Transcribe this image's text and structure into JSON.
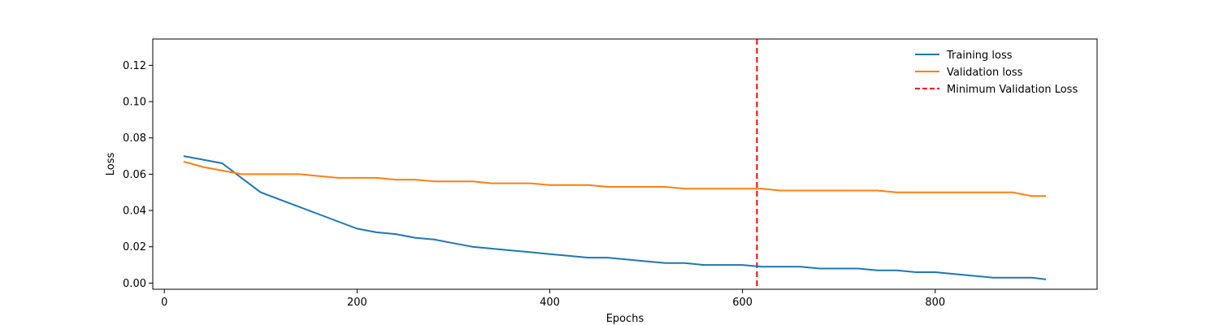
{
  "chart_data": {
    "type": "line",
    "title": "",
    "xlabel": "Epochs",
    "ylabel": "Loss",
    "xlim": [
      -12,
      968
    ],
    "ylim": [
      -0.0034,
      0.1345
    ],
    "x_ticks": [
      0,
      200,
      400,
      600,
      800
    ],
    "y_ticks": [
      0.0,
      0.02,
      0.04,
      0.06,
      0.08,
      0.1,
      0.12
    ],
    "x_tick_labels": [
      "0",
      "200",
      "400",
      "600",
      "800"
    ],
    "y_tick_labels": [
      "0.00",
      "0.02",
      "0.04",
      "0.06",
      "0.08",
      "0.10",
      "0.12"
    ],
    "grid": false,
    "legend_position": "top-right",
    "series": [
      {
        "name": "Training loss",
        "color": "#1f77b4",
        "style": "solid",
        "x": [
          20,
          40,
          60,
          80,
          100,
          120,
          140,
          160,
          180,
          200,
          220,
          240,
          260,
          280,
          300,
          320,
          340,
          360,
          380,
          400,
          420,
          440,
          460,
          480,
          500,
          520,
          540,
          560,
          580,
          600,
          620,
          640,
          660,
          680,
          700,
          720,
          740,
          760,
          780,
          800,
          820,
          840,
          860,
          880,
          900,
          915
        ],
        "y": [
          0.07,
          0.068,
          0.066,
          0.058,
          0.05,
          0.046,
          0.042,
          0.038,
          0.034,
          0.03,
          0.028,
          0.027,
          0.025,
          0.024,
          0.022,
          0.02,
          0.019,
          0.018,
          0.017,
          0.016,
          0.015,
          0.014,
          0.014,
          0.013,
          0.012,
          0.011,
          0.011,
          0.01,
          0.01,
          0.01,
          0.009,
          0.009,
          0.009,
          0.008,
          0.008,
          0.008,
          0.007,
          0.007,
          0.006,
          0.006,
          0.005,
          0.004,
          0.003,
          0.003,
          0.003,
          0.002
        ]
      },
      {
        "name": "Validation loss",
        "color": "#ff7f0e",
        "style": "solid",
        "x": [
          20,
          40,
          60,
          80,
          100,
          120,
          140,
          160,
          180,
          200,
          220,
          240,
          260,
          280,
          300,
          320,
          340,
          360,
          380,
          400,
          420,
          440,
          460,
          480,
          500,
          520,
          540,
          560,
          580,
          600,
          620,
          640,
          660,
          680,
          700,
          720,
          740,
          760,
          780,
          800,
          820,
          840,
          860,
          880,
          900,
          915
        ],
        "y": [
          0.067,
          0.064,
          0.062,
          0.06,
          0.06,
          0.06,
          0.06,
          0.059,
          0.058,
          0.058,
          0.058,
          0.057,
          0.057,
          0.056,
          0.056,
          0.056,
          0.055,
          0.055,
          0.055,
          0.054,
          0.054,
          0.054,
          0.053,
          0.053,
          0.053,
          0.053,
          0.052,
          0.052,
          0.052,
          0.052,
          0.052,
          0.051,
          0.051,
          0.051,
          0.051,
          0.051,
          0.051,
          0.05,
          0.05,
          0.05,
          0.05,
          0.05,
          0.05,
          0.05,
          0.048,
          0.048
        ]
      },
      {
        "name": "Minimum Validation Loss",
        "color": "#ff0000",
        "style": "dashed",
        "x_value": 615
      }
    ]
  }
}
